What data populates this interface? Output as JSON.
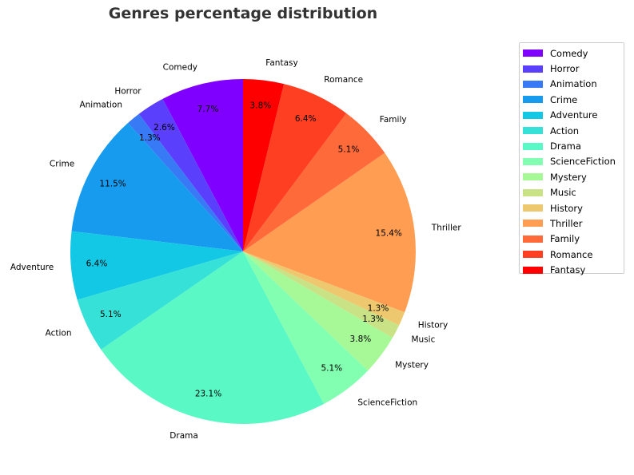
{
  "chart_data": {
    "type": "pie",
    "title": "Genres percentage distribution",
    "start_angle_deg": 90,
    "direction": "counterclockwise",
    "slices": [
      {
        "label": "Comedy",
        "value": 7.7,
        "pct_label": "7.7%",
        "color": "#8000ff"
      },
      {
        "label": "Horror",
        "value": 2.6,
        "pct_label": "2.6%",
        "color": "#5a3ffd"
      },
      {
        "label": "Animation",
        "value": 1.3,
        "pct_label": "1.3%",
        "color": "#3879f5"
      },
      {
        "label": "Crime",
        "value": 11.5,
        "pct_label": "11.5%",
        "color": "#169bee"
      },
      {
        "label": "Adventure",
        "value": 6.4,
        "pct_label": "6.4%",
        "color": "#13c8e4"
      },
      {
        "label": "Action",
        "value": 5.1,
        "pct_label": "5.1%",
        "color": "#36e2d8"
      },
      {
        "label": "Drama",
        "value": 23.1,
        "pct_label": "23.1%",
        "color": "#5af8c4"
      },
      {
        "label": "ScienceFiction",
        "value": 5.1,
        "pct_label": "5.1%",
        "color": "#82ffb0"
      },
      {
        "label": "Mystery",
        "value": 3.8,
        "pct_label": "3.8%",
        "color": "#a7f897"
      },
      {
        "label": "Music",
        "value": 1.3,
        "pct_label": "1.3%",
        "color": "#c9e286"
      },
      {
        "label": "History",
        "value": 1.3,
        "pct_label": "1.3%",
        "color": "#eec86e"
      },
      {
        "label": "Thriller",
        "value": 15.4,
        "pct_label": "15.4%",
        "color": "#ff9e52"
      },
      {
        "label": "Family",
        "value": 5.1,
        "pct_label": "5.1%",
        "color": "#ff6a3a"
      },
      {
        "label": "Romance",
        "value": 6.4,
        "pct_label": "6.4%",
        "color": "#ff3f22"
      },
      {
        "label": "Fantasy",
        "value": 3.8,
        "pct_label": "3.8%",
        "color": "#ff0000"
      }
    ],
    "legend": {
      "placement": "upper-right-outside"
    }
  }
}
